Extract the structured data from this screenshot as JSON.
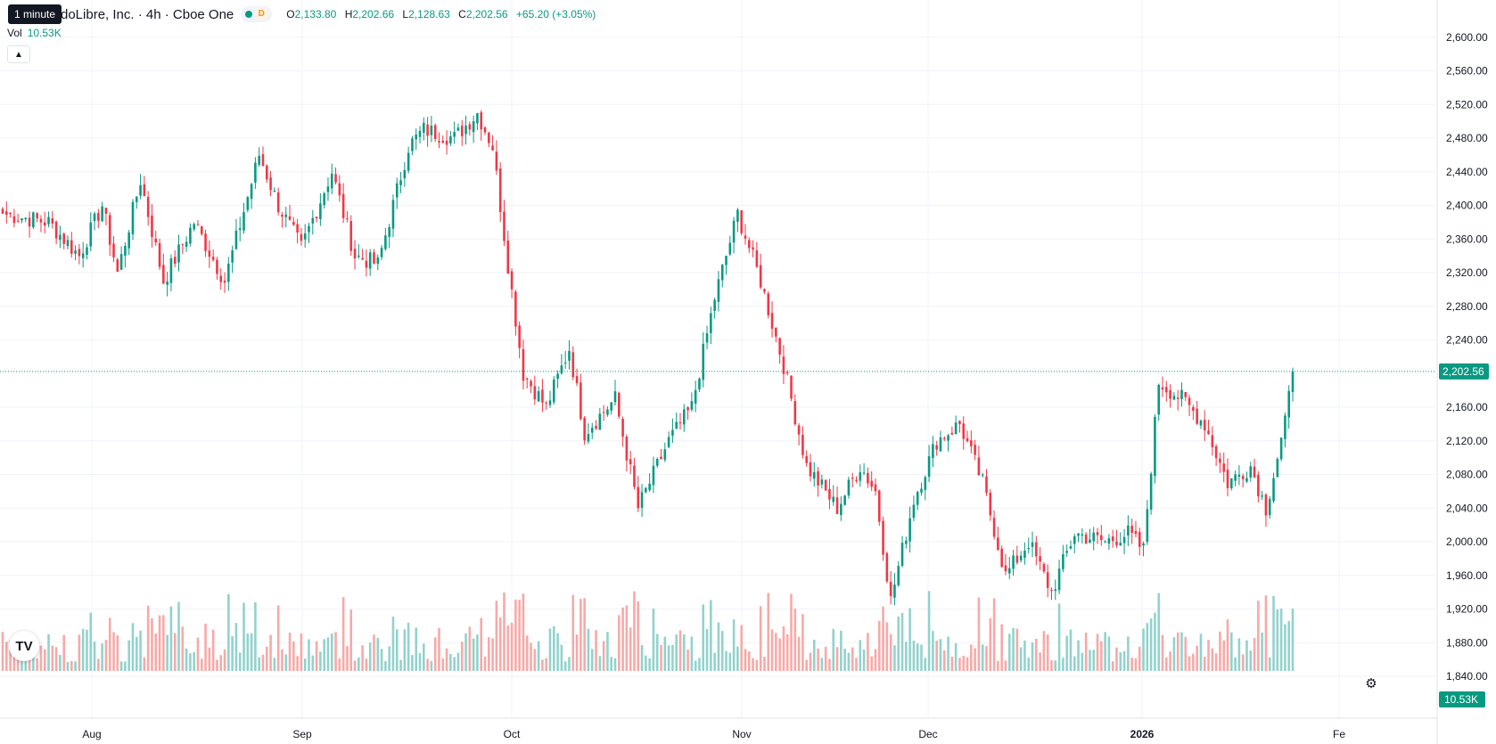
{
  "header": {
    "title": "doLibre, Inc. · 4h · Cboe One",
    "tooltip": "1 minute",
    "status_letter": "D",
    "ohlc": {
      "o_label": "O",
      "o": "2,133.80",
      "h_label": "H",
      "h": "2,202.66",
      "l_label": "L",
      "l": "2,128.63",
      "c_label": "C",
      "c": "2,202.56",
      "change": "+65.20 (+3.05%)"
    },
    "vol_label": "Vol",
    "vol_value": "10.53K"
  },
  "colors": {
    "up": "#089981",
    "down": "#f23645",
    "up_vol": "#92d2cc",
    "down_vol": "#f7a9a7",
    "grid": "#f0f3fa"
  },
  "chart_data": {
    "type": "candlestick",
    "y_ticks": [
      "2,600.00",
      "2,560.00",
      "2,520.00",
      "2,480.00",
      "2,440.00",
      "2,400.00",
      "2,360.00",
      "2,320.00",
      "2,280.00",
      "2,240.00",
      "2,160.00",
      "2,120.00",
      "2,080.00",
      "2,040.00",
      "2,000.00",
      "1,960.00",
      "1,920.00",
      "1,880.00",
      "1,840.00"
    ],
    "ylim": [
      1840,
      2640
    ],
    "x_labels": [
      "Aug",
      "Sep",
      "Oct",
      "Nov",
      "Dec",
      "2026",
      "Fe"
    ],
    "last_price": 2202.56,
    "last_price_label": "2,202.56",
    "last_volume_label": "10.53K",
    "anchors": [
      {
        "i": 0,
        "p": 2390
      },
      {
        "i": 12,
        "p": 2380
      },
      {
        "i": 20,
        "p": 2340
      },
      {
        "i": 26,
        "p": 2400
      },
      {
        "i": 30,
        "p": 2320
      },
      {
        "i": 36,
        "p": 2430
      },
      {
        "i": 42,
        "p": 2310
      },
      {
        "i": 50,
        "p": 2380
      },
      {
        "i": 58,
        "p": 2310
      },
      {
        "i": 67,
        "p": 2460
      },
      {
        "i": 72,
        "p": 2400
      },
      {
        "i": 78,
        "p": 2350
      },
      {
        "i": 86,
        "p": 2440
      },
      {
        "i": 92,
        "p": 2340
      },
      {
        "i": 98,
        "p": 2330
      },
      {
        "i": 106,
        "p": 2470
      },
      {
        "i": 110,
        "p": 2490
      },
      {
        "i": 118,
        "p": 2480
      },
      {
        "i": 124,
        "p": 2510
      },
      {
        "i": 128,
        "p": 2470
      },
      {
        "i": 132,
        "p": 2330
      },
      {
        "i": 136,
        "p": 2200
      },
      {
        "i": 142,
        "p": 2160
      },
      {
        "i": 148,
        "p": 2230
      },
      {
        "i": 152,
        "p": 2130
      },
      {
        "i": 160,
        "p": 2170
      },
      {
        "i": 166,
        "p": 2040
      },
      {
        "i": 174,
        "p": 2120
      },
      {
        "i": 180,
        "p": 2160
      },
      {
        "i": 186,
        "p": 2290
      },
      {
        "i": 192,
        "p": 2390
      },
      {
        "i": 198,
        "p": 2310
      },
      {
        "i": 204,
        "p": 2210
      },
      {
        "i": 210,
        "p": 2090
      },
      {
        "i": 218,
        "p": 2040
      },
      {
        "i": 224,
        "p": 2090
      },
      {
        "i": 228,
        "p": 2060
      },
      {
        "i": 232,
        "p": 1930
      },
      {
        "i": 238,
        "p": 2050
      },
      {
        "i": 244,
        "p": 2120
      },
      {
        "i": 250,
        "p": 2140
      },
      {
        "i": 256,
        "p": 2070
      },
      {
        "i": 262,
        "p": 1960
      },
      {
        "i": 268,
        "p": 2000
      },
      {
        "i": 274,
        "p": 1940
      },
      {
        "i": 280,
        "p": 2010
      },
      {
        "i": 288,
        "p": 2000
      },
      {
        "i": 294,
        "p": 2010
      },
      {
        "i": 298,
        "p": 1990
      },
      {
        "i": 302,
        "p": 2190
      },
      {
        "i": 308,
        "p": 2170
      },
      {
        "i": 314,
        "p": 2140
      },
      {
        "i": 320,
        "p": 2070
      },
      {
        "i": 326,
        "p": 2090
      },
      {
        "i": 330,
        "p": 2040
      },
      {
        "i": 335,
        "p": 2140
      },
      {
        "i": 337,
        "p": 2202
      }
    ]
  }
}
